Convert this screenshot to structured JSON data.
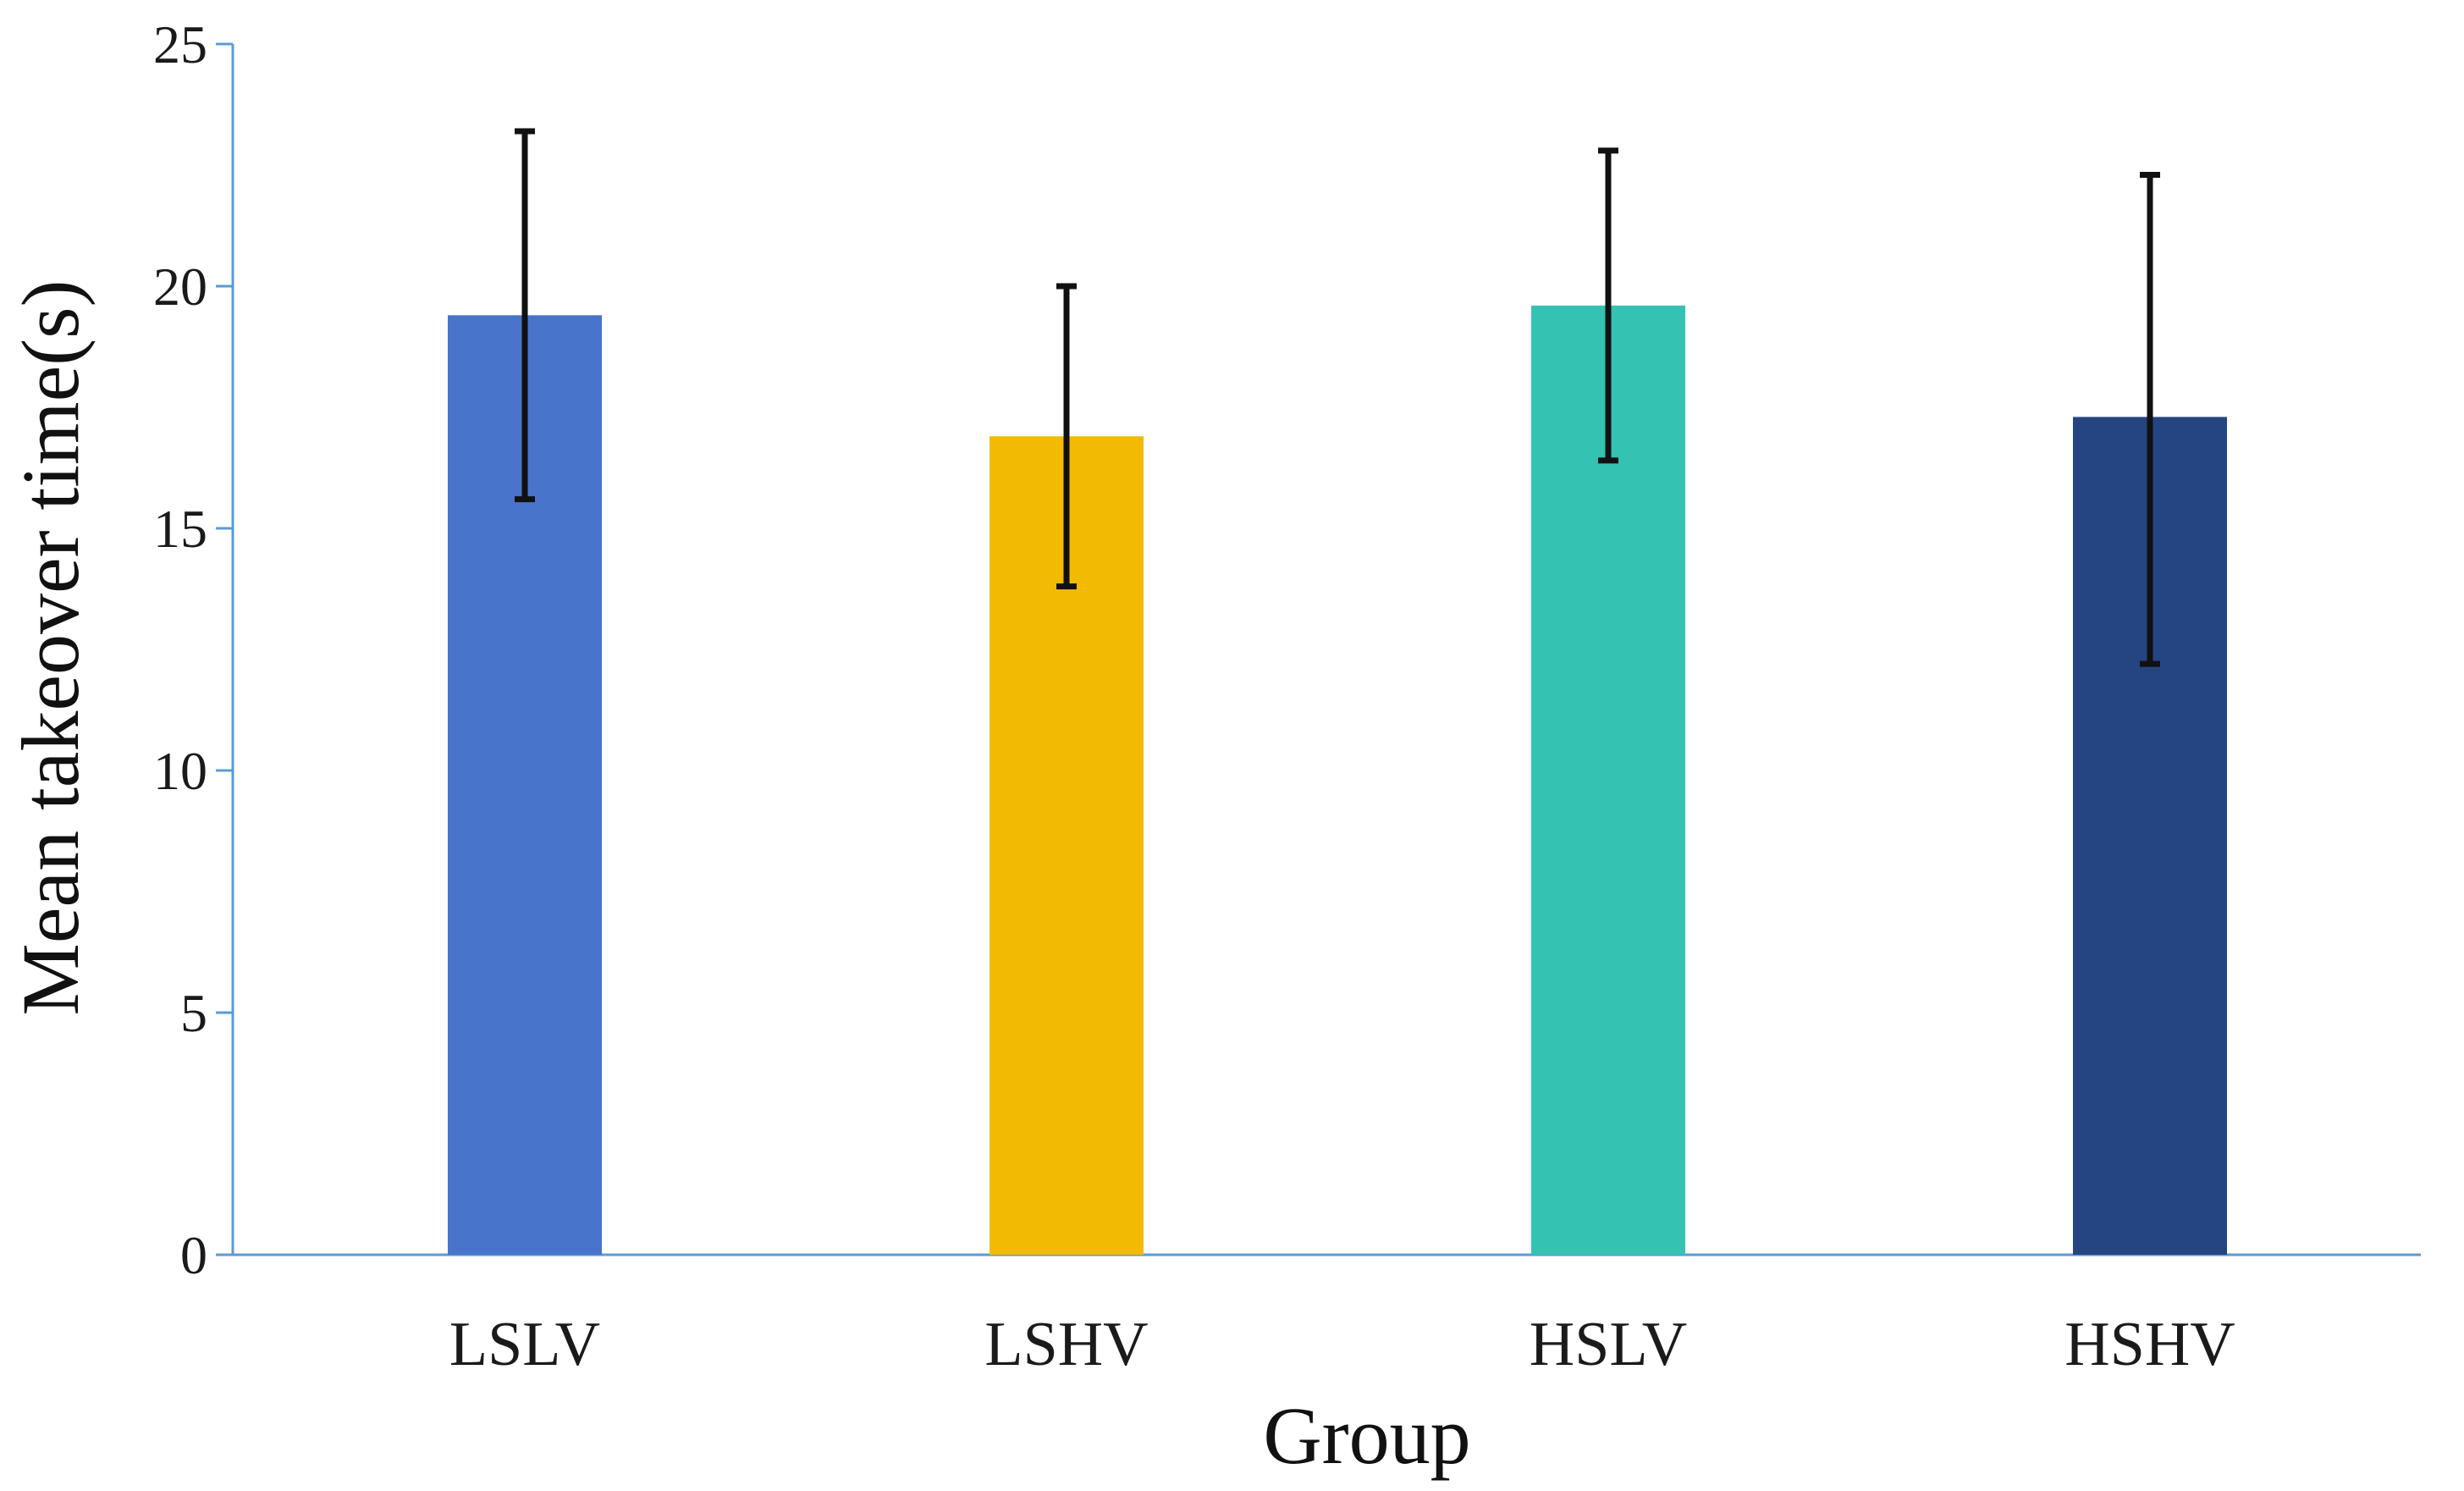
{
  "chart_data": {
    "type": "bar",
    "title": "",
    "xlabel": "Group",
    "ylabel": "Mean takeover time(s)",
    "categories": [
      "LSLV",
      "LSHV",
      "HSLV",
      "HSHV"
    ],
    "values": [
      19.4,
      16.9,
      19.6,
      17.3
    ],
    "error_low": [
      15.6,
      13.8,
      16.4,
      12.2
    ],
    "error_high": [
      23.2,
      20.0,
      22.8,
      22.3
    ],
    "colors": [
      "#4874CB",
      "#F2BA02",
      "#34C3B3",
      "#254582"
    ],
    "ylim": [
      0,
      25
    ],
    "yticks": [
      "0",
      "5",
      "10",
      "15",
      "20",
      "25"
    ],
    "grid": false,
    "legend": "none",
    "axis_color": "#5B9BD5",
    "error_bar_color": "#111111"
  }
}
